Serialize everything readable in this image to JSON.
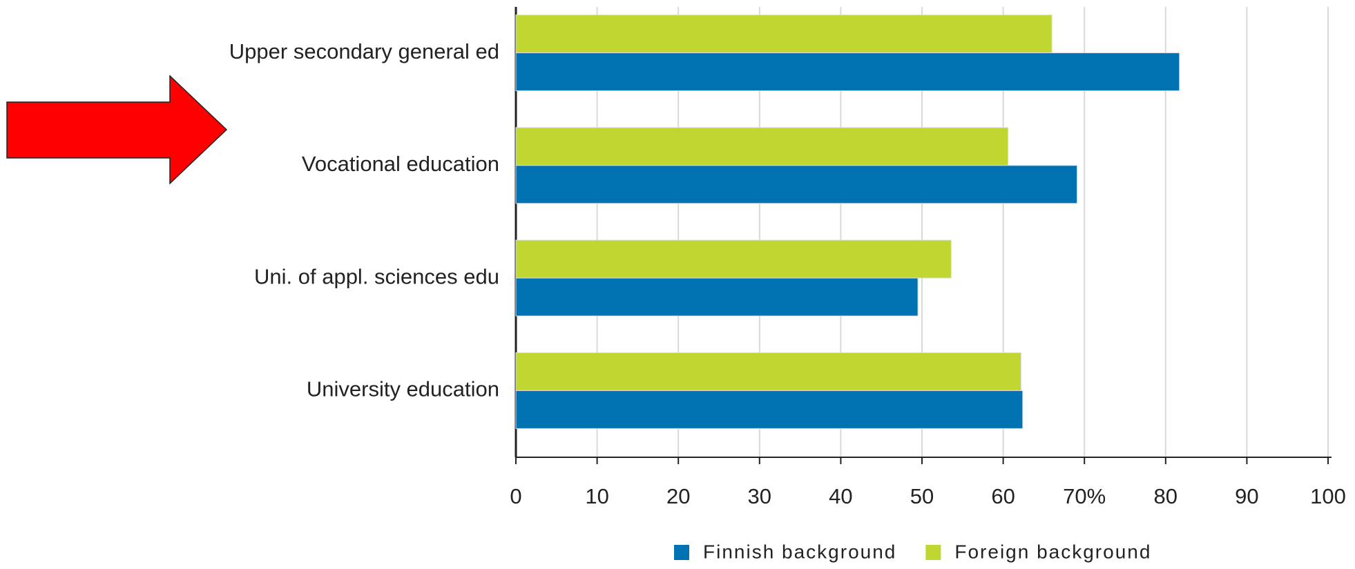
{
  "chart_data": {
    "type": "hbar",
    "categories": [
      "Upper secondary general ed",
      "Vocational education",
      "Uni. of appl. sciences edu",
      "University education"
    ],
    "series": [
      {
        "name": "Finnish background",
        "color": "#0072b2",
        "values": [
          81.7,
          69.1,
          49.5,
          62.4
        ]
      },
      {
        "name": "Foreign background",
        "color": "#c0d731",
        "values": [
          66.0,
          60.6,
          53.6,
          62.2
        ]
      }
    ],
    "xlim": [
      0,
      100
    ],
    "xticks": [
      0,
      10,
      20,
      30,
      40,
      50,
      60,
      {
        "value": 70,
        "label": "70%"
      },
      80,
      90,
      100
    ],
    "grid": true,
    "legend": "bottom"
  }
}
